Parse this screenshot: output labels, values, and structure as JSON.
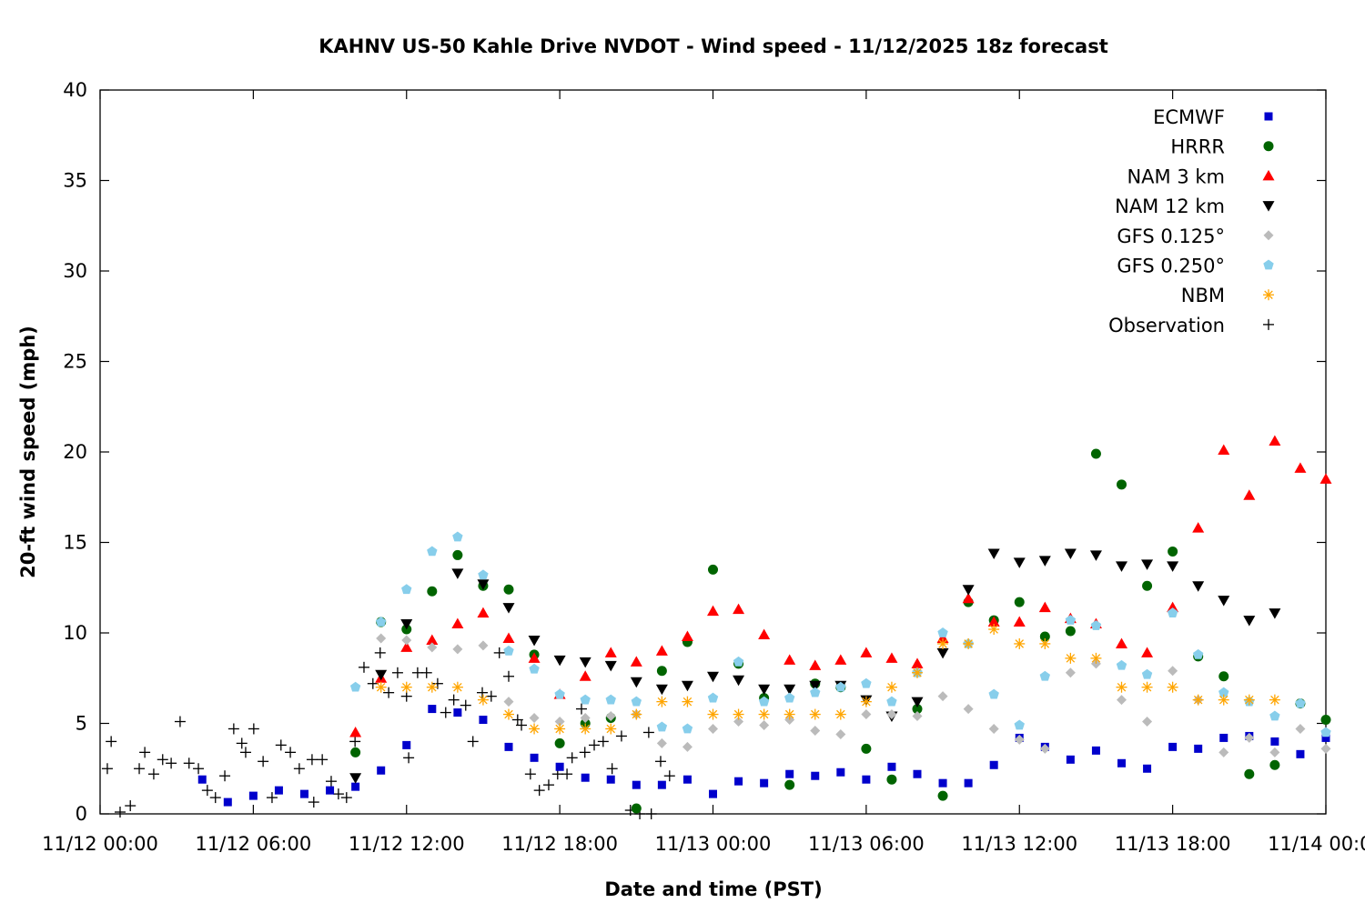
{
  "chart_data": {
    "type": "scatter",
    "title": "KAHNV US-50 Kahle Drive NVDOT - Wind speed - 11/12/2025 18z forecast",
    "xlabel": "Date and time (PST)",
    "ylabel": "20-ft wind speed (mph)",
    "xlim": [
      "11/12 00:00",
      "11/14 00:00"
    ],
    "ylim": [
      0,
      40
    ],
    "y_ticks": [
      "0",
      "5",
      "10",
      "15",
      "20",
      "25",
      "30",
      "35",
      "40"
    ],
    "x_ticks": [
      "11/12 00:00",
      "11/12 06:00",
      "11/12 12:00",
      "11/12 18:00",
      "11/13 00:00",
      "11/13 06:00",
      "11/13 12:00",
      "11/13 18:00",
      "11/14 00:00"
    ],
    "grid": false,
    "legend_position": "top-right",
    "forecast_times_start": "11/12 04:00",
    "forecast_times_step": "1 hour",
    "series": [
      {
        "name": "ECMWF",
        "marker": "square",
        "color": "#0000cc",
        "values": [
          1.9,
          0.65,
          1.0,
          1.3,
          1.1,
          1.3,
          1.5,
          2.4,
          3.8,
          5.8,
          5.6,
          5.2,
          3.7,
          3.1,
          2.6,
          2.0,
          1.9,
          1.6,
          1.6,
          1.9,
          1.1,
          1.8,
          1.7,
          2.2,
          2.1,
          2.3,
          1.9,
          2.6,
          2.2,
          1.7,
          1.7,
          2.7,
          4.2,
          3.7,
          3.0,
          3.5,
          2.8,
          2.5,
          3.7,
          3.6,
          4.2,
          4.3,
          4.0,
          3.3,
          4.2
        ]
      },
      {
        "name": "HRRR",
        "marker": "circle",
        "color": "#006400",
        "values": [
          null,
          null,
          null,
          null,
          null,
          null,
          3.4,
          10.6,
          10.2,
          12.3,
          14.3,
          12.6,
          12.4,
          8.8,
          3.9,
          5.0,
          5.3,
          0.3,
          7.9,
          9.5,
          13.5,
          8.3,
          6.4,
          1.6,
          7.2,
          7.0,
          3.6,
          1.9,
          5.8,
          1.0,
          11.7,
          10.7,
          11.7,
          9.8,
          10.1,
          19.9,
          18.2,
          12.6,
          14.5,
          8.7,
          7.6,
          2.2,
          2.7,
          6.1,
          5.2
        ]
      },
      {
        "name": "NAM 3 km",
        "marker": "triangle-up",
        "color": "#ff0000",
        "values": [
          null,
          null,
          null,
          null,
          null,
          null,
          4.5,
          7.5,
          9.2,
          9.6,
          10.5,
          11.1,
          9.7,
          8.6,
          6.6,
          7.6,
          8.9,
          8.4,
          9.0,
          9.8,
          11.2,
          11.3,
          9.9,
          8.5,
          8.2,
          8.5,
          8.9,
          8.6,
          8.3,
          9.7,
          11.9,
          10.6,
          10.6,
          11.4,
          10.8,
          10.5,
          9.4,
          8.9,
          11.4,
          15.8,
          20.1,
          17.6,
          20.6,
          19.1,
          18.5
        ]
      },
      {
        "name": "NAM 12 km",
        "marker": "triangle-down",
        "color": "#000000",
        "values": [
          null,
          null,
          null,
          null,
          null,
          null,
          2.0,
          7.7,
          10.5,
          null,
          13.3,
          12.7,
          11.4,
          9.6,
          8.5,
          8.4,
          8.2,
          7.3,
          6.9,
          7.1,
          7.6,
          7.4,
          6.9,
          6.9,
          7.1,
          7.1,
          6.3,
          5.4,
          6.2,
          8.9,
          12.4,
          14.4,
          13.9,
          14.0,
          14.4,
          14.3,
          13.7,
          13.8,
          13.7,
          12.6,
          11.8,
          10.7,
          11.1,
          null,
          null
        ]
      },
      {
        "name": "GFS 0.125°",
        "marker": "diamond",
        "color": "#bbbbbb",
        "values": [
          null,
          null,
          null,
          null,
          null,
          null,
          null,
          9.7,
          9.6,
          9.2,
          9.1,
          9.3,
          6.2,
          5.3,
          5.1,
          5.3,
          5.4,
          5.5,
          3.9,
          3.7,
          4.7,
          5.1,
          4.9,
          5.2,
          4.6,
          4.4,
          5.5,
          5.5,
          5.4,
          6.5,
          5.8,
          4.7,
          4.1,
          3.6,
          7.8,
          8.3,
          6.3,
          5.1,
          7.9,
          6.3,
          3.4,
          4.2,
          3.4,
          4.7,
          3.6
        ]
      },
      {
        "name": "GFS 0.250°",
        "marker": "pentagon",
        "color": "#87ceeb",
        "values": [
          null,
          null,
          null,
          null,
          null,
          null,
          7.0,
          10.6,
          12.4,
          14.5,
          15.3,
          13.2,
          9.0,
          8.0,
          6.6,
          6.3,
          6.3,
          6.2,
          4.8,
          4.7,
          6.4,
          8.4,
          6.2,
          6.4,
          6.7,
          7.0,
          7.2,
          6.2,
          7.8,
          10.0,
          9.4,
          6.6,
          4.9,
          7.6,
          10.7,
          10.4,
          8.2,
          7.7,
          11.1,
          8.8,
          6.7,
          6.2,
          5.4,
          6.1,
          4.5
        ]
      },
      {
        "name": "NBM",
        "marker": "asterisk",
        "color": "#ffa500",
        "values": [
          null,
          null,
          null,
          null,
          null,
          null,
          null,
          7.0,
          7.0,
          7.0,
          7.0,
          6.3,
          5.5,
          4.7,
          4.7,
          4.7,
          4.7,
          5.5,
          6.2,
          6.2,
          5.5,
          5.5,
          5.5,
          5.5,
          5.5,
          5.5,
          6.2,
          7.0,
          7.8,
          9.4,
          9.4,
          10.2,
          9.4,
          9.4,
          8.6,
          8.6,
          7.0,
          7.0,
          7.0,
          6.3,
          6.3,
          6.3,
          6.3,
          null,
          null
        ]
      }
    ],
    "observation": {
      "name": "Observation",
      "marker": "plus",
      "color": "#000000",
      "points": [
        [
          "11/12 00:17",
          2.5
        ],
        [
          "11/12 00:26",
          4.0
        ],
        [
          "11/12 00:47",
          0.1
        ],
        [
          "11/12 01:11",
          0.45
        ],
        [
          "11/12 01:32",
          2.5
        ],
        [
          "11/12 01:45",
          3.4
        ],
        [
          "11/12 02:06",
          2.2
        ],
        [
          "11/12 02:27",
          3.0
        ],
        [
          "11/12 02:47",
          2.8
        ],
        [
          "11/12 03:08",
          5.1
        ],
        [
          "11/12 03:29",
          2.8
        ],
        [
          "11/12 03:51",
          2.5
        ],
        [
          "11/12 04:12",
          1.3
        ],
        [
          "11/12 04:31",
          0.9
        ],
        [
          "11/12 04:53",
          2.1
        ],
        [
          "11/12 05:14",
          4.7
        ],
        [
          "11/12 05:33",
          3.9
        ],
        [
          "11/12 05:42",
          3.4
        ],
        [
          "11/12 06:01",
          4.7
        ],
        [
          "11/12 06:23",
          2.9
        ],
        [
          "11/12 06:44",
          0.9
        ],
        [
          "11/12 07:05",
          3.8
        ],
        [
          "11/12 07:27",
          3.4
        ],
        [
          "11/12 07:48",
          2.5
        ],
        [
          "11/12 08:18",
          3.0
        ],
        [
          "11/12 08:22",
          0.65
        ],
        [
          "11/12 08:42",
          3.0
        ],
        [
          "11/12 09:03",
          1.8
        ],
        [
          "11/12 09:20",
          1.1
        ],
        [
          "11/12 09:39",
          0.9
        ],
        [
          "11/12 09:59",
          4.0
        ],
        [
          "11/12 10:20",
          8.1
        ],
        [
          "11/12 10:41",
          7.2
        ],
        [
          "11/12 10:58",
          8.9
        ],
        [
          "11/12 11:18",
          6.7
        ],
        [
          "11/12 11:39",
          7.8
        ],
        [
          "11/12 12:00",
          6.5
        ],
        [
          "11/12 12:05",
          3.1
        ],
        [
          "11/12 12:26",
          7.8
        ],
        [
          "11/12 12:47",
          7.8
        ],
        [
          "11/12 13:13",
          7.2
        ],
        [
          "11/12 13:32",
          5.6
        ],
        [
          "11/12 13:51",
          6.3
        ],
        [
          "11/12 14:19",
          6.0
        ],
        [
          "11/12 14:36",
          4.0
        ],
        [
          "11/12 14:58",
          6.7
        ],
        [
          "11/12 15:19",
          6.5
        ],
        [
          "11/12 15:38",
          8.9
        ],
        [
          "11/12 16:00",
          7.6
        ],
        [
          "11/12 16:21",
          5.2
        ],
        [
          "11/12 16:30",
          4.9
        ],
        [
          "11/12 16:51",
          2.2
        ],
        [
          "11/12 17:12",
          1.3
        ],
        [
          "11/12 17:34",
          1.6
        ],
        [
          "11/12 17:55",
          2.2
        ],
        [
          "11/12 18:17",
          2.2
        ],
        [
          "11/12 18:29",
          3.1
        ],
        [
          "11/12 18:51",
          5.8
        ],
        [
          "11/12 18:59",
          3.4
        ],
        [
          "11/12 19:21",
          3.8
        ],
        [
          "11/12 19:42",
          4.0
        ],
        [
          "11/12 20:03",
          2.5
        ],
        [
          "11/12 20:25",
          4.3
        ],
        [
          "11/12 20:46",
          0.2
        ],
        [
          "11/12 21:08",
          0.0
        ],
        [
          "11/12 21:29",
          4.5
        ],
        [
          "11/12 21:35",
          0.0
        ],
        [
          "11/12 21:57",
          2.9
        ],
        [
          "11/12 22:18",
          2.1
        ]
      ]
    }
  }
}
